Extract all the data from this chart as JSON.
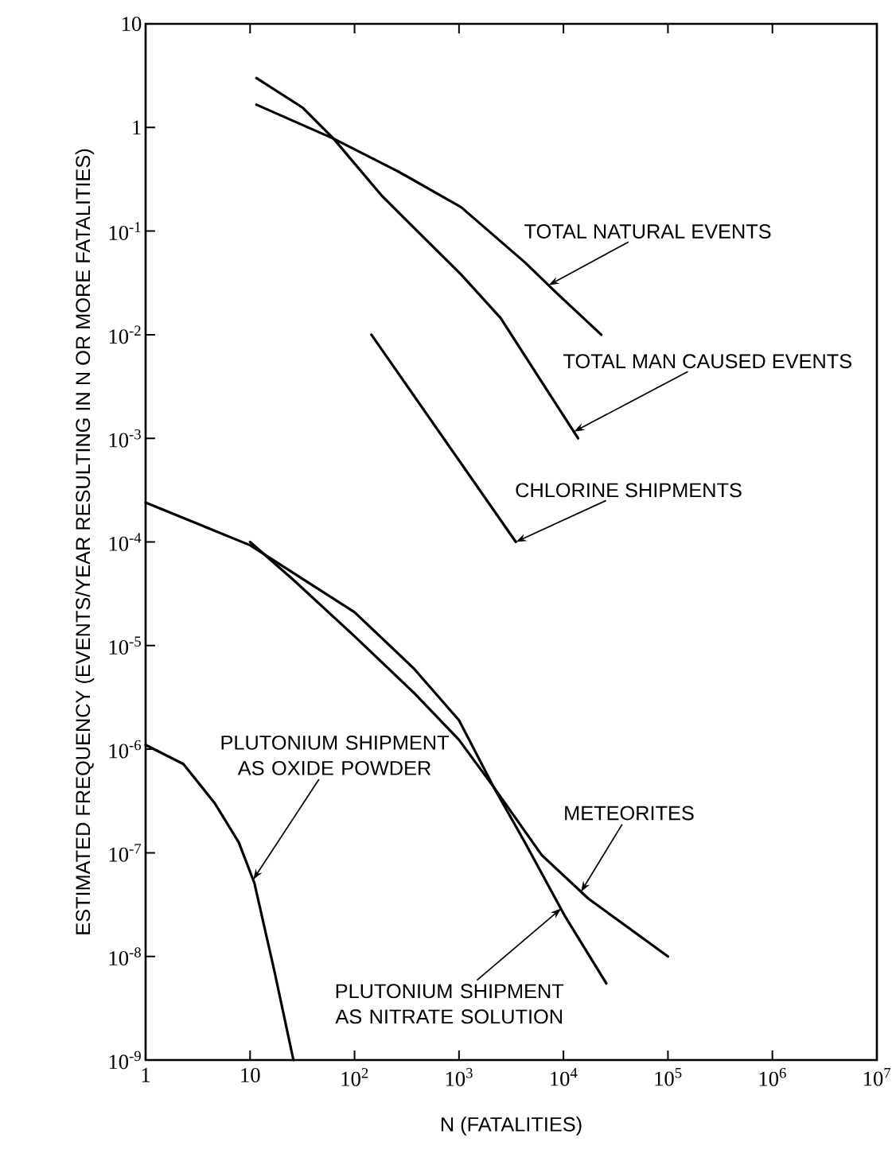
{
  "chart_data": {
    "type": "line",
    "xlabel": "N (FATALITIES)",
    "ylabel": "ESTIMATED FREQUENCY (EVENTS/YEAR RESULTING IN N OR MORE FATALITIES)",
    "log": "xy",
    "xlim": [
      1,
      10000000
    ],
    "ylim": [
      1e-09,
      10
    ],
    "xticks": [
      1,
      10,
      {
        "value": 100,
        "label": "10$^{2}$"
      },
      {
        "value": 1000,
        "label": "10$^{3}$"
      },
      {
        "value": 10000,
        "label": "10$^{4}$"
      },
      {
        "value": 100000,
        "label": "10$^{5}$"
      },
      {
        "value": 1000000,
        "label": "10$^{6}$"
      },
      {
        "value": 10000000,
        "label": "10$^{7}$"
      }
    ],
    "yticks": [
      {
        "value": 1e-09,
        "label": "10$^{-9}$"
      },
      {
        "value": 1e-08,
        "label": "10$^{-8}$"
      },
      {
        "value": 1e-07,
        "label": "10$^{-7}$"
      },
      {
        "value": 1e-06,
        "label": "10$^{-6}$"
      },
      {
        "value": 1e-05,
        "label": "10$^{-5}$"
      },
      {
        "value": 0.0001,
        "label": "10$^{-4}$"
      },
      {
        "value": 0.001,
        "label": "10$^{-3}$"
      },
      {
        "value": 0.01,
        "label": "10$^{-2}$"
      },
      {
        "value": 0.1,
        "label": "10$^{-1}$"
      },
      1,
      10
    ],
    "grid": false,
    "marker": "none",
    "line_style": "solid",
    "series": [
      {
        "color": "#000000",
        "x": [
          11.5,
          63,
          257,
          1050,
          4270,
          8700,
          23000
        ],
        "values": [
          1.66,
          0.78,
          0.38,
          0.17,
          0.05,
          0.025,
          0.01
        ]
      },
      {
        "color": "#000000",
        "x": [
          11.5,
          32,
          63,
          182,
          470,
          1050,
          2500,
          6200,
          13800
        ],
        "values": [
          3.0,
          1.55,
          0.78,
          0.22,
          0.085,
          0.038,
          0.0145,
          0.0035,
          0.001
        ]
      },
      {
        "color": "#000000",
        "x": [
          145,
          3500
        ],
        "values": [
          0.01,
          0.0001
        ]
      },
      {
        "color": "#000000",
        "x": [
          1,
          10,
          100,
          370,
          1000,
          2150,
          6200,
          17400,
          100000
        ],
        "values": [
          0.00024,
          9.3e-05,
          2.1e-05,
          6e-06,
          1.9e-06,
          4.3e-07,
          9.5e-08,
          3.6e-08,
          1e-08
        ]
      },
      {
        "color": "#000000",
        "x": [
          10,
          26,
          100,
          370,
          1000,
          2150,
          4270,
          10200,
          25700
        ],
        "values": [
          0.0001,
          4.3e-05,
          1.23e-05,
          3.5e-06,
          1.23e-06,
          4.3e-07,
          1.26e-07,
          2.5e-08,
          5.5e-09
        ]
      },
      {
        "color": "#000000",
        "x": [
          1,
          2.3,
          4.6,
          7.8,
          11,
          17,
          26
        ],
        "values": [
          1.1e-06,
          7.2e-07,
          3e-07,
          1.26e-07,
          5.1e-08,
          7.4e-09,
          1e-09
        ]
      }
    ],
    "annotations": [
      {
        "text": "TOTAL NATURAL EVENTS",
        "x": 7200,
        "y": 0.03
      },
      {
        "text": "TOTAL MAN CAUSED EVENTS",
        "x": 12600,
        "y": 0.00116
      },
      {
        "text": "CHLORINE SHIPMENTS",
        "x": 3500,
        "y": 0.0001
      },
      {
        "text": "METEORITES",
        "x": 14700,
        "y": 4.2e-08
      },
      {
        "text": "PLUTONIUM SHIPMENT AS NITRATE SOLUTION",
        "x": 9500,
        "y": 2.9e-08
      },
      {
        "text": "PLUTONIUM SHIPMENT AS OXIDE POWDER",
        "x": 10.7,
        "y": 5.5e-08
      }
    ]
  }
}
